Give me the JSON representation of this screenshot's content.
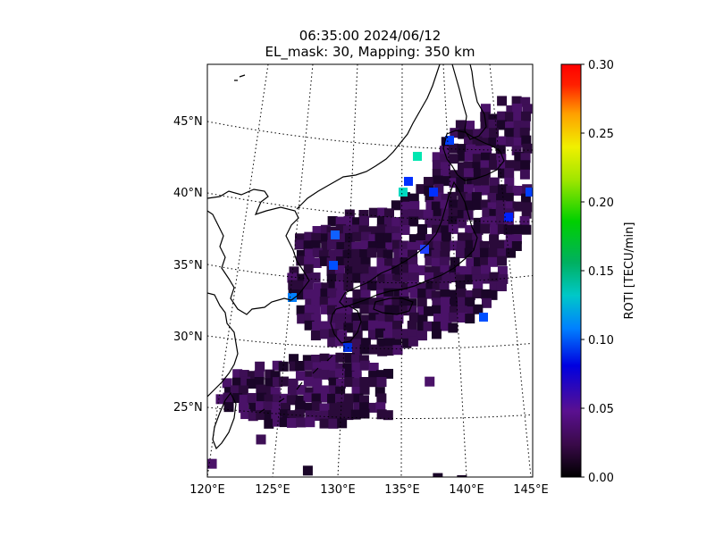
{
  "title": {
    "line1": "06:35:00 2024/06/12",
    "line2": "EL_mask: 30, Mapping: 350 km"
  },
  "map": {
    "lat_labels": [
      "45°N",
      "40°N",
      "35°N",
      "30°N",
      "25°N"
    ],
    "lon_labels": [
      "120°E",
      "125°E",
      "130°E",
      "135°E",
      "140°E",
      "145°E"
    ],
    "land_color": "#ffffff",
    "coastline_color": "#000000",
    "gridline_style": "dotted"
  },
  "colorbar": {
    "label": "ROTI [TECU/min]",
    "ticks": [
      "0.00",
      "0.05",
      "0.10",
      "0.15",
      "0.20",
      "0.25",
      "0.30"
    ],
    "range": [
      0.0,
      0.3
    ],
    "colormap": "nipy_spectral-like (black-purple-blue-cyan-green-yellow-red)"
  },
  "data_summary": {
    "dominant_roti": 0.03,
    "typical_colors": [
      "#2a0a3a",
      "#3d0f55",
      "#4a1268",
      "#1a0528"
    ]
  }
}
